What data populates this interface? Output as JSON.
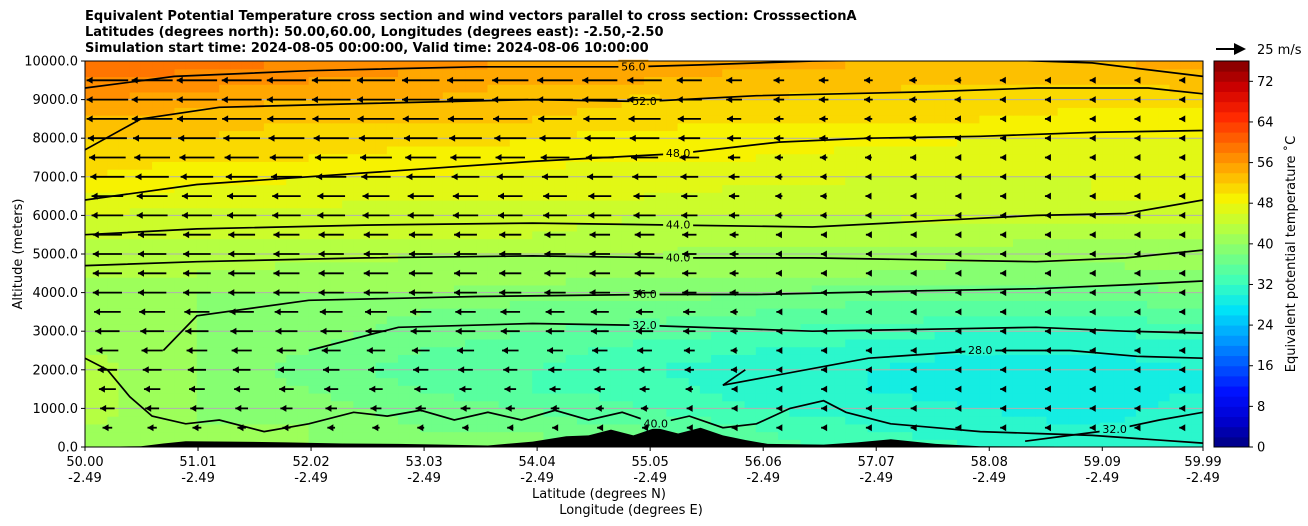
{
  "title": {
    "line1": "Equivalent Potential Temperature cross section and wind vectors parallel to cross section: CrosssectionA",
    "line2": "Latitudes (degrees north): 50.00,60.00, Longitudes (degrees east): -2.50,-2.50",
    "line3": "Simulation start time: 2024-08-05 00:00:00, Valid time: 2024-08-06 10:00:00"
  },
  "chart_data": {
    "type": "heatmap",
    "ylabel": "Altitude (meters)",
    "xlabel_lat": "Latitude (degrees N)",
    "xlabel_lon": "Longitude (degrees E)",
    "ylim": [
      0,
      10000
    ],
    "xlim": [
      50.0,
      59.99
    ],
    "grid": "horizontal",
    "y_ticks": [
      "0.0",
      "1000.0",
      "2000.0",
      "3000.0",
      "4000.0",
      "5000.0",
      "6000.0",
      "7000.0",
      "8000.0",
      "9000.0",
      "10000.0"
    ],
    "x_ticks_lat": [
      "50.00",
      "51.01",
      "52.02",
      "53.03",
      "54.04",
      "55.05",
      "56.06",
      "57.07",
      "58.08",
      "59.09",
      "59.99"
    ],
    "x_ticks_lon": [
      "-2.49",
      "-2.49",
      "-2.49",
      "-2.49",
      "-2.49",
      "-2.49",
      "-2.49",
      "-2.49",
      "-2.49",
      "-2.49",
      "-2.49"
    ],
    "colorbar": {
      "label": "Equivalent potential temperature ˚C",
      "range": [
        0,
        76
      ],
      "ticks": [
        "0",
        "8",
        "16",
        "24",
        "32",
        "40",
        "48",
        "56",
        "64",
        "72"
      ]
    },
    "quiver_key": {
      "label": "25 m/s"
    },
    "contours": [
      {
        "label": "56.0"
      },
      {
        "label": "52.0"
      },
      {
        "label": "48.0"
      },
      {
        "label": "44.0"
      },
      {
        "label": "40.0"
      },
      {
        "label": "36.0"
      },
      {
        "label": "32.0"
      },
      {
        "label": "28.0"
      }
    ],
    "contour_lines": [
      {
        "level": 56,
        "pts": [
          [
            50.0,
            9300
          ],
          [
            50.8,
            9600
          ],
          [
            52.0,
            9750
          ],
          [
            53.5,
            9850
          ],
          [
            54.9,
            9850
          ],
          [
            55.5,
            9900
          ],
          [
            56.5,
            10000
          ],
          [
            58.0,
            10050
          ],
          [
            59.0,
            9950
          ],
          [
            59.99,
            9600
          ]
        ]
      },
      {
        "level": 52,
        "pts": [
          [
            50.0,
            7700
          ],
          [
            50.5,
            8500
          ],
          [
            51.2,
            8800
          ],
          [
            52.5,
            8900
          ],
          [
            54.0,
            9000
          ],
          [
            55.0,
            8950
          ],
          [
            56.0,
            9100
          ],
          [
            57.5,
            9200
          ],
          [
            58.5,
            9300
          ],
          [
            59.5,
            9300
          ],
          [
            59.99,
            9150
          ]
        ]
      },
      {
        "level": 48,
        "pts": [
          [
            50.0,
            6400
          ],
          [
            51.0,
            6800
          ],
          [
            52.5,
            7100
          ],
          [
            54.0,
            7400
          ],
          [
            55.3,
            7600
          ],
          [
            56.2,
            7900
          ],
          [
            57.0,
            8000
          ],
          [
            58.0,
            8050
          ],
          [
            59.0,
            8150
          ],
          [
            59.99,
            8200
          ]
        ]
      },
      {
        "level": 44,
        "pts": [
          [
            50.0,
            5500
          ],
          [
            51.0,
            5650
          ],
          [
            52.5,
            5750
          ],
          [
            54.0,
            5800
          ],
          [
            55.3,
            5750
          ],
          [
            56.5,
            5700
          ],
          [
            57.5,
            5850
          ],
          [
            58.5,
            6000
          ],
          [
            59.3,
            6050
          ],
          [
            59.99,
            6400
          ]
        ]
      },
      {
        "level": 40,
        "pts": [
          [
            50.0,
            4700
          ],
          [
            51.0,
            4800
          ],
          [
            52.5,
            4900
          ],
          [
            54.0,
            4950
          ],
          [
            55.3,
            4900
          ],
          [
            56.5,
            4900
          ],
          [
            57.5,
            4850
          ],
          [
            58.5,
            4800
          ],
          [
            59.3,
            4900
          ],
          [
            59.99,
            5100
          ]
        ]
      },
      {
        "level": 36,
        "pts": [
          [
            50.7,
            2500
          ],
          [
            51.0,
            3400
          ],
          [
            52.0,
            3800
          ],
          [
            53.5,
            3900
          ],
          [
            55.0,
            3950
          ],
          [
            56.0,
            3950
          ],
          [
            57.5,
            4050
          ],
          [
            58.5,
            4100
          ],
          [
            59.3,
            4200
          ],
          [
            59.99,
            4300
          ]
        ]
      },
      {
        "level": 32,
        "pts": [
          [
            52.0,
            2500
          ],
          [
            52.8,
            3100
          ],
          [
            54.0,
            3200
          ],
          [
            55.0,
            3150
          ],
          [
            56.5,
            3000
          ],
          [
            57.5,
            3050
          ],
          [
            58.5,
            3100
          ],
          [
            59.3,
            3000
          ],
          [
            59.99,
            2950
          ]
        ]
      },
      {
        "level": 28,
        "pts": [
          [
            55.9,
            2000
          ],
          [
            55.7,
            1600
          ],
          [
            57.0,
            2300
          ],
          [
            58.0,
            2500
          ],
          [
            58.8,
            2500
          ],
          [
            59.4,
            2350
          ],
          [
            59.99,
            2300
          ]
        ]
      },
      {
        "level": 40,
        "pts": [
          [
            50.0,
            2300
          ],
          [
            50.2,
            2000
          ],
          [
            50.4,
            1300
          ],
          [
            50.6,
            800
          ],
          [
            50.9,
            600
          ],
          [
            51.2,
            700
          ],
          [
            51.6,
            400
          ],
          [
            52.0,
            600
          ],
          [
            52.4,
            900
          ],
          [
            52.7,
            800
          ],
          [
            53.0,
            950
          ],
          [
            53.3,
            700
          ],
          [
            53.6,
            900
          ],
          [
            53.9,
            700
          ],
          [
            54.2,
            950
          ],
          [
            54.5,
            700
          ],
          [
            54.8,
            900
          ],
          [
            55.1,
            600
          ],
          [
            55.4,
            800
          ],
          [
            55.7,
            500
          ],
          [
            56.0,
            600
          ],
          [
            56.3,
            1000
          ],
          [
            56.6,
            1200
          ],
          [
            56.8,
            900
          ],
          [
            57.2,
            600
          ],
          [
            57.6,
            500
          ],
          [
            58.0,
            400
          ],
          [
            58.5,
            350
          ],
          [
            59.0,
            300
          ],
          [
            59.5,
            200
          ],
          [
            59.99,
            100
          ]
        ]
      },
      {
        "level": 32,
        "pts": [
          [
            58.4,
            150
          ],
          [
            58.8,
            300
          ],
          [
            59.2,
            450
          ],
          [
            59.6,
            700
          ],
          [
            59.99,
            900
          ]
        ]
      }
    ],
    "colormap": [
      "#00007f",
      "#0000d0",
      "#0010ff",
      "#0058ff",
      "#00a0ff",
      "#00e4f7",
      "#3dffba",
      "#7aff7d",
      "#baff3d",
      "#f7f400",
      "#ffb000",
      "#ff6c00",
      "#ff2800",
      "#d00000",
      "#7f0000"
    ],
    "colorbar_levels": 38,
    "scalar_field": {
      "heights": [
        0,
        500,
        1000,
        1500,
        2000,
        2500,
        3000,
        3500,
        4000,
        4500,
        5000,
        5500,
        6000,
        6500,
        7000,
        7500,
        8000,
        8500,
        9000,
        9500,
        10000
      ],
      "lats": [
        50.0,
        51.0,
        52.0,
        53.0,
        54.0,
        55.0,
        56.0,
        57.0,
        58.0,
        59.0,
        59.99
      ],
      "values": [
        [
          42,
          40,
          40,
          40,
          40,
          38,
          35,
          33,
          32,
          31,
          31
        ],
        [
          42,
          40,
          40,
          38,
          37,
          36,
          34,
          32,
          31,
          30,
          31
        ],
        [
          43,
          40,
          39,
          37,
          36,
          34,
          32,
          31,
          30,
          29,
          31
        ],
        [
          43,
          40,
          38,
          36,
          34,
          33,
          31,
          30,
          29,
          29,
          30
        ],
        [
          43,
          40,
          37,
          35,
          34,
          32,
          31,
          30,
          29,
          29,
          30
        ],
        [
          42,
          40,
          38,
          36,
          35,
          33,
          32,
          31,
          30,
          30,
          31
        ],
        [
          41,
          40,
          39,
          37,
          36,
          35,
          34,
          33,
          32,
          32,
          33
        ],
        [
          40,
          40,
          39,
          38,
          37,
          37,
          36,
          35,
          35,
          35,
          35
        ],
        [
          40,
          40,
          40,
          40,
          39,
          39,
          38,
          37,
          37,
          37,
          38
        ],
        [
          42,
          42,
          41,
          41,
          41,
          40,
          40,
          40,
          39,
          39,
          40
        ],
        [
          43,
          43,
          43,
          42,
          42,
          42,
          41,
          41,
          41,
          41,
          41
        ],
        [
          44,
          44,
          44,
          44,
          44,
          43,
          43,
          43,
          43,
          42,
          42
        ],
        [
          46,
          45,
          45,
          45,
          45,
          44,
          44,
          44,
          45,
          45,
          45
        ],
        [
          48,
          47,
          47,
          46,
          46,
          46,
          45,
          45,
          45,
          46,
          46
        ],
        [
          50,
          49,
          48,
          48,
          47,
          47,
          47,
          46,
          46,
          46,
          46
        ],
        [
          51,
          50,
          50,
          49,
          49,
          48,
          48,
          47,
          47,
          47,
          47
        ],
        [
          52,
          52,
          51,
          51,
          50,
          49,
          49,
          49,
          48,
          48,
          48
        ],
        [
          54,
          53,
          52,
          52,
          52,
          51,
          50,
          50,
          50,
          49,
          49
        ],
        [
          56,
          55,
          54,
          54,
          53,
          52,
          52,
          51,
          51,
          51,
          51
        ],
        [
          58,
          57,
          56,
          55,
          54,
          54,
          53,
          53,
          52,
          52,
          53
        ],
        [
          60,
          59,
          58,
          57,
          56,
          55,
          55,
          54,
          54,
          54,
          55
        ]
      ]
    },
    "wind_field": {
      "heights": [
        0,
        500,
        1000,
        1500,
        2000,
        2500,
        3000,
        3500,
        4000,
        4500,
        5000,
        5500,
        6000,
        6500,
        7000,
        7500,
        8000,
        8500,
        9000,
        9500,
        10000
      ],
      "lats": [
        50.0,
        55.0,
        56.0,
        59.99
      ],
      "u": [
        [
          -2,
          -1,
          -0.5,
          -0.5
        ],
        [
          -4,
          -2,
          -1,
          -0.5
        ],
        [
          -6,
          -3,
          -1,
          -0.5
        ],
        [
          -7,
          -4,
          -1.5,
          -0.5
        ],
        [
          -8,
          -5,
          -2,
          -0.5
        ],
        [
          -9,
          -6,
          -2,
          -0.5
        ],
        [
          -10,
          -7,
          -2,
          -0.5
        ],
        [
          -11,
          -7,
          -2,
          -0.5
        ],
        [
          -12,
          -8,
          -2.5,
          -0.5
        ],
        [
          -12,
          -8,
          -2.5,
          -0.5
        ],
        [
          -12,
          -8,
          -2.5,
          -0.5
        ],
        [
          -12,
          -8,
          -2.5,
          -0.5
        ],
        [
          -13,
          -9,
          -3,
          -0.5
        ],
        [
          -13,
          -9,
          -3,
          -0.5
        ],
        [
          -14,
          -10,
          -3,
          -0.5
        ],
        [
          -15,
          -11,
          -3.5,
          -0.5
        ],
        [
          -16,
          -12,
          -4,
          -0.5
        ],
        [
          -17,
          -13,
          -4,
          -0.5
        ],
        [
          -17,
          -14,
          -4.5,
          -0.5
        ],
        [
          -17,
          -14,
          -4.5,
          -0.5
        ],
        [
          -16,
          -13,
          -4,
          -0.5
        ]
      ],
      "quiver_key_speed": 25
    },
    "terrain": [
      {
        "lat": 50.0,
        "alt": 0
      },
      {
        "lat": 50.5,
        "alt": 20
      },
      {
        "lat": 50.7,
        "alt": 90
      },
      {
        "lat": 50.9,
        "alt": 150
      },
      {
        "lat": 51.3,
        "alt": 140
      },
      {
        "lat": 51.8,
        "alt": 120
      },
      {
        "lat": 52.3,
        "alt": 90
      },
      {
        "lat": 52.8,
        "alt": 80
      },
      {
        "lat": 53.2,
        "alt": 60
      },
      {
        "lat": 53.6,
        "alt": 40
      },
      {
        "lat": 54.0,
        "alt": 140
      },
      {
        "lat": 54.3,
        "alt": 280
      },
      {
        "lat": 54.5,
        "alt": 300
      },
      {
        "lat": 54.7,
        "alt": 450
      },
      {
        "lat": 54.9,
        "alt": 300
      },
      {
        "lat": 55.1,
        "alt": 500
      },
      {
        "lat": 55.3,
        "alt": 350
      },
      {
        "lat": 55.5,
        "alt": 500
      },
      {
        "lat": 55.7,
        "alt": 300
      },
      {
        "lat": 55.9,
        "alt": 180
      },
      {
        "lat": 56.1,
        "alt": 80
      },
      {
        "lat": 56.6,
        "alt": 60
      },
      {
        "lat": 56.9,
        "alt": 120
      },
      {
        "lat": 57.2,
        "alt": 200
      },
      {
        "lat": 57.6,
        "alt": 80
      },
      {
        "lat": 58.0,
        "alt": 20
      },
      {
        "lat": 59.99,
        "alt": 0
      }
    ]
  }
}
